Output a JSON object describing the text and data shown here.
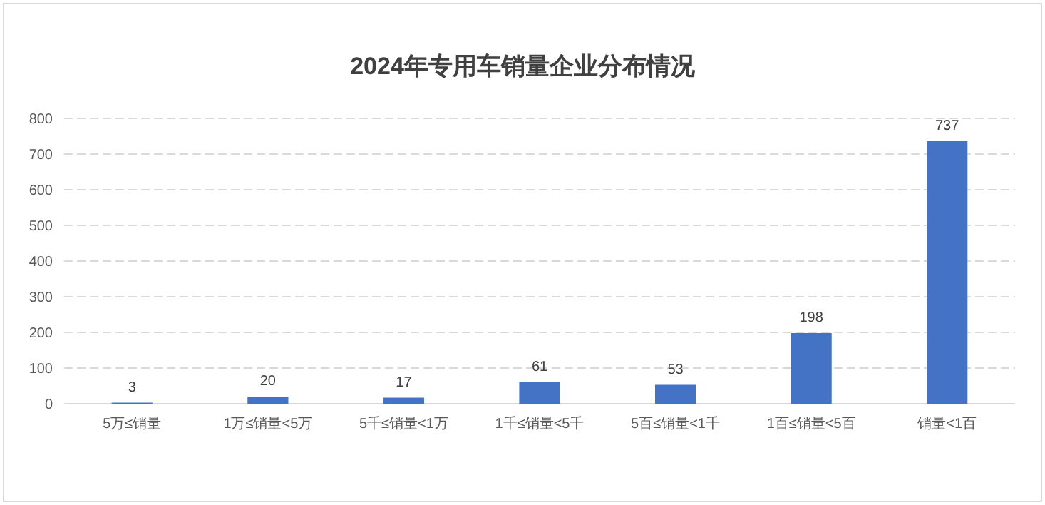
{
  "chart_data": {
    "type": "bar",
    "title": "2024年专用车销量企业分布情况",
    "categories": [
      "5万≤销量",
      "1万≤销量<5万",
      "5千≤销量<1万",
      "1千≤销量<5千",
      "5百≤销量<1千",
      "1百≤销量<5百",
      "销量<1百"
    ],
    "values": [
      3,
      20,
      17,
      61,
      53,
      198,
      737
    ],
    "color": "#4472c4",
    "ylim": [
      0,
      800
    ],
    "yticks": [
      0,
      100,
      200,
      300,
      400,
      500,
      600,
      700,
      800
    ],
    "grid": "y",
    "data_labels": true
  }
}
